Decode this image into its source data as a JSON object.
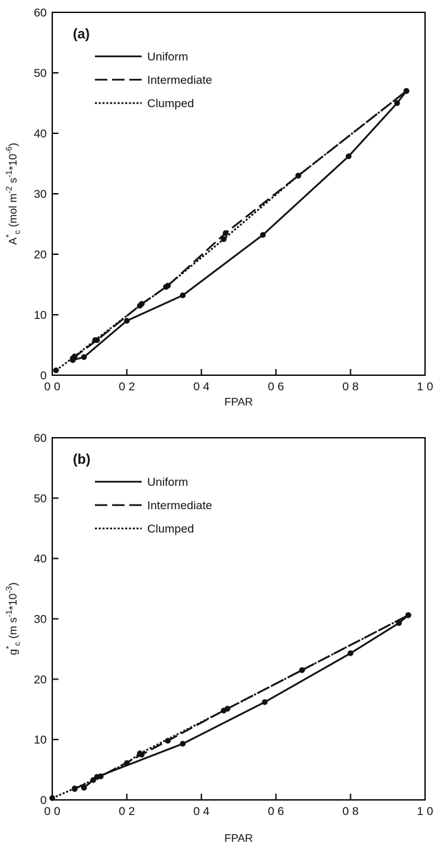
{
  "chart_data": [
    {
      "type": "line",
      "panel_label": "(a)",
      "xlabel": "FPAR",
      "ylabel_main": "A",
      "ylabel_sup": "*",
      "ylabel_sub": "c",
      "ylabel_units": "(mol m",
      "ylabel_units_exp1": "-2",
      "ylabel_units_mid": " s",
      "ylabel_units_exp2": "-1",
      "ylabel_units_tail": "*10",
      "ylabel_units_exp3": "-6",
      "ylabel_units_close": ")",
      "xlim": [
        0,
        1.0
      ],
      "ylim": [
        0,
        60
      ],
      "x_ticks": [
        0.0,
        0.2,
        0.4,
        0.6,
        0.8,
        1.0
      ],
      "x_tick_labels": [
        "0 0",
        "0 2",
        "0 4",
        "0 6",
        "0 8",
        "1 0"
      ],
      "y_ticks": [
        0,
        10,
        20,
        30,
        40,
        50,
        60
      ],
      "y_tick_labels": [
        "0",
        "10",
        "20",
        "30",
        "40",
        "50",
        "60"
      ],
      "legend_position": "top-left",
      "series": [
        {
          "name": "Uniform",
          "style": "solid",
          "x": [
            0.055,
            0.085,
            0.2,
            0.35,
            0.565,
            0.795,
            0.925,
            0.95
          ],
          "y": [
            2.5,
            3.0,
            9.0,
            13.2,
            23.2,
            36.2,
            45.0,
            47.0
          ]
        },
        {
          "name": "Intermediate",
          "style": "dashed",
          "x": [
            0.055,
            0.12,
            0.24,
            0.31,
            0.465,
            0.66,
            0.95
          ],
          "y": [
            2.8,
            5.8,
            11.8,
            14.8,
            23.5,
            33.0,
            47.0
          ]
        },
        {
          "name": "Clumped",
          "style": "dotted",
          "x": [
            0.01,
            0.06,
            0.115,
            0.235,
            0.305,
            0.46,
            0.66,
            0.95
          ],
          "y": [
            0.8,
            3.1,
            5.8,
            11.5,
            14.6,
            22.5,
            33.0,
            47.0
          ]
        }
      ]
    },
    {
      "type": "line",
      "panel_label": "(b)",
      "xlabel": "FPAR",
      "ylabel_main": "g",
      "ylabel_sup": "*",
      "ylabel_sub": "c",
      "ylabel_units": "(m s",
      "ylabel_units_exp1": "-1",
      "ylabel_units_mid": "",
      "ylabel_units_exp2": "",
      "ylabel_units_tail": "*10",
      "ylabel_units_exp3": "-3",
      "ylabel_units_close": ")",
      "xlim": [
        0,
        1.0
      ],
      "ylim": [
        0,
        60
      ],
      "x_ticks": [
        0.0,
        0.2,
        0.4,
        0.6,
        0.8,
        1.0
      ],
      "x_tick_labels": [
        "0 0",
        "0 2",
        "0 4",
        "0 6",
        "0 8",
        "1 0"
      ],
      "y_ticks": [
        0,
        10,
        20,
        30,
        40,
        50,
        60
      ],
      "y_tick_labels": [
        "0",
        "10",
        "20",
        "30",
        "40",
        "50",
        "60"
      ],
      "legend_position": "top-left",
      "series": [
        {
          "name": "Uniform",
          "style": "solid",
          "x": [
            0.085,
            0.12,
            0.35,
            0.57,
            0.8,
            0.93,
            0.955
          ],
          "y": [
            2.0,
            3.8,
            9.3,
            16.2,
            24.3,
            29.3,
            30.6
          ]
        },
        {
          "name": "Intermediate",
          "style": "dashed",
          "x": [
            0.06,
            0.13,
            0.24,
            0.31,
            0.46,
            0.67,
            0.955
          ],
          "y": [
            1.8,
            3.9,
            7.5,
            9.8,
            14.8,
            21.5,
            30.6
          ]
        },
        {
          "name": "Clumped",
          "style": "dotted",
          "x": [
            0.0,
            0.06,
            0.11,
            0.2,
            0.235,
            0.47,
            0.67,
            0.955
          ],
          "y": [
            0.3,
            1.9,
            3.3,
            6.1,
            7.7,
            15.1,
            21.5,
            30.6
          ]
        }
      ]
    }
  ]
}
